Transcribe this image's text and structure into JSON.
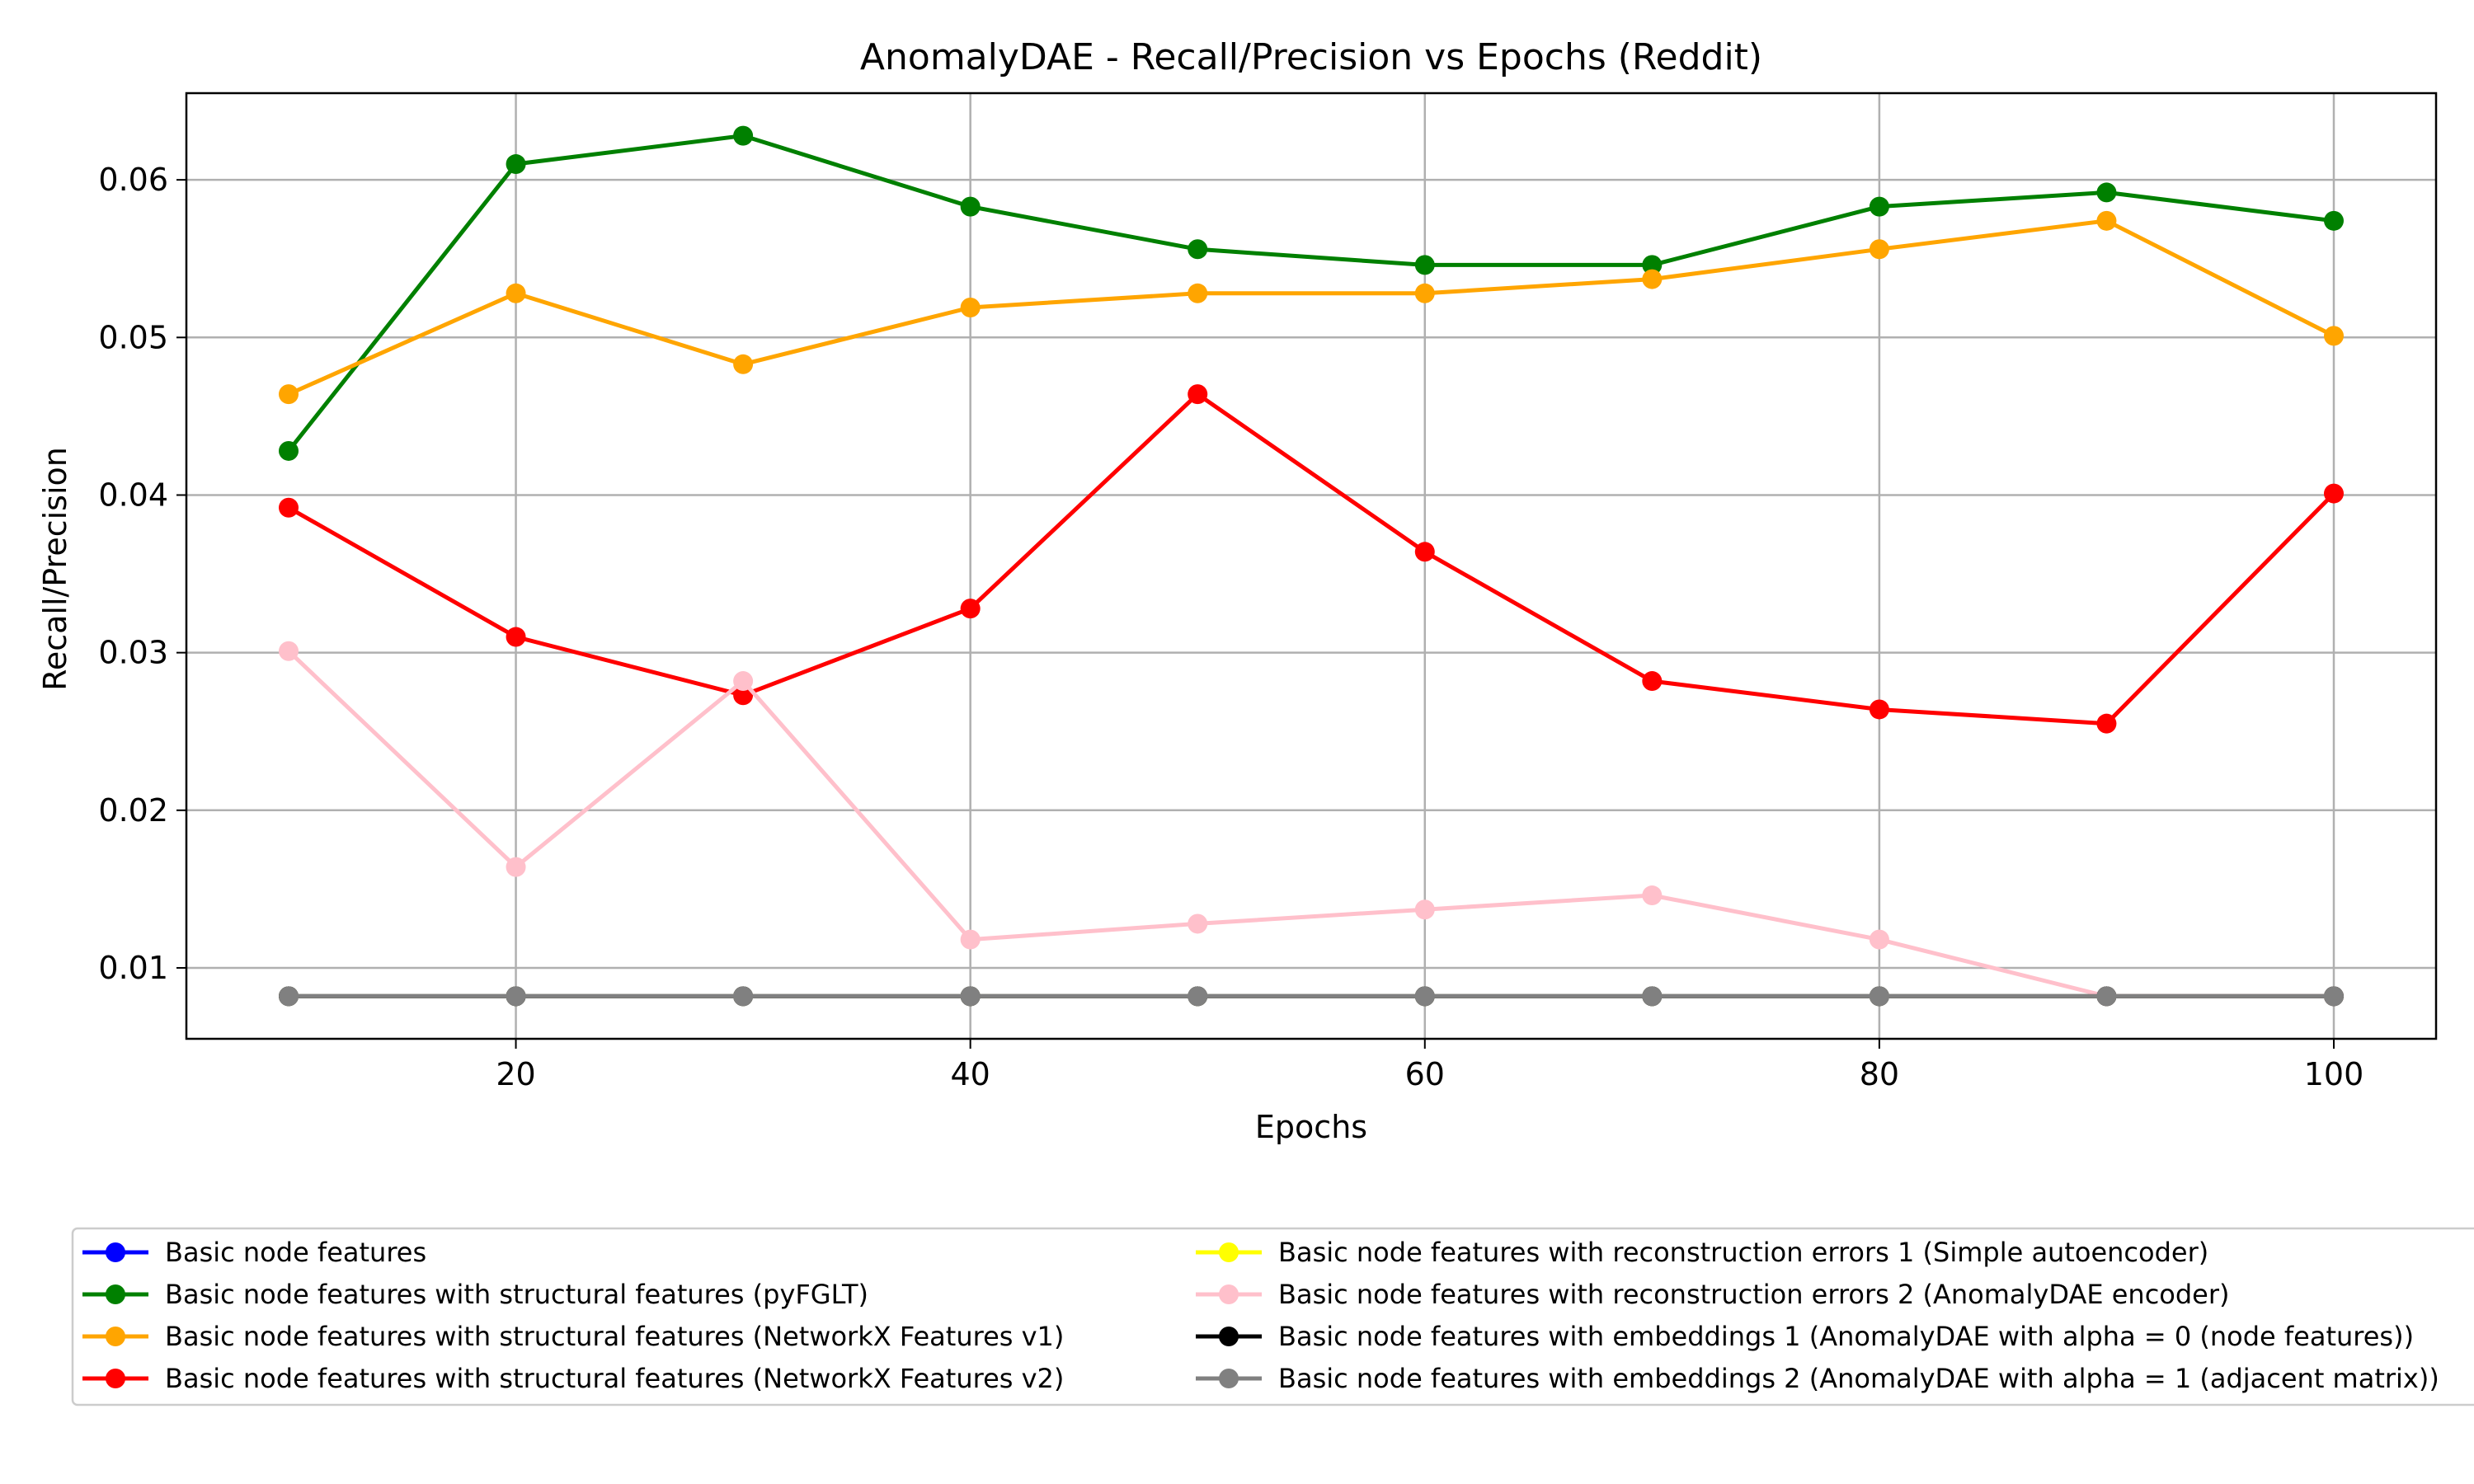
{
  "chart_data": {
    "type": "line",
    "title": "AnomalyDAE - Recall/Precision vs Epochs (Reddit)",
    "xlabel": "Epochs",
    "ylabel": "Recall/Precision",
    "xlim": [
      5.5,
      104.5
    ],
    "ylim": [
      0.0055,
      0.0655
    ],
    "xticks": [
      20,
      40,
      60,
      80,
      100
    ],
    "xtick_labels": [
      "20",
      "40",
      "60",
      "80",
      "100"
    ],
    "yticks": [
      0.01,
      0.02,
      0.03,
      0.04,
      0.05,
      0.06
    ],
    "ytick_labels": [
      "0.01",
      "0.02",
      "0.03",
      "0.04",
      "0.05",
      "0.06"
    ],
    "grid": true,
    "legend_position": "below plot, two columns",
    "x": [
      10,
      20,
      30,
      40,
      50,
      60,
      70,
      80,
      90,
      100
    ],
    "series": [
      {
        "name": "Basic node features",
        "color": "#0000ff",
        "values": [
          0.0082,
          0.0082,
          0.0082,
          0.0082,
          0.0082,
          0.0082,
          0.0082,
          0.0082,
          0.0082,
          0.0082
        ]
      },
      {
        "name": "Basic node features with structural features (pyFGLT)",
        "color": "#008000",
        "values": [
          0.0428,
          0.061,
          0.0628,
          0.0583,
          0.0556,
          0.0546,
          0.0546,
          0.0583,
          0.0592,
          0.0574
        ]
      },
      {
        "name": "Basic node features with structural features (NetworkX Features v1)",
        "color": "#ffa500",
        "values": [
          0.0464,
          0.0528,
          0.0483,
          0.0519,
          0.0528,
          0.0528,
          0.0537,
          0.0556,
          0.0574,
          0.0501
        ]
      },
      {
        "name": "Basic node features with structural features (NetworkX Features v2)",
        "color": "#ff0000",
        "values": [
          0.0392,
          0.031,
          0.0273,
          0.0328,
          0.0464,
          0.0364,
          0.0282,
          0.0264,
          0.0255,
          0.0401
        ]
      },
      {
        "name": "Basic node features with reconstruction errors 1 (Simple autoencoder)",
        "color": "#ffff00",
        "values": [
          0.0082,
          0.0082,
          0.0082,
          0.0082,
          0.0082,
          0.0082,
          0.0082,
          0.0082,
          0.0082,
          0.0082
        ]
      },
      {
        "name": "Basic node features with reconstruction errors 2 (AnomalyDAE encoder)",
        "color": "#ffc0cb",
        "values": [
          0.0301,
          0.0164,
          0.0282,
          0.0118,
          0.0128,
          0.0137,
          0.0146,
          0.0118,
          0.0082,
          0.0082
        ]
      },
      {
        "name": "Basic node features with embeddings 1 (AnomalyDAE with alpha = 0 (node features))",
        "color": "#000000",
        "values": [
          0.0082,
          0.0082,
          0.0082,
          0.0082,
          0.0082,
          0.0082,
          0.0082,
          0.0082,
          0.0082,
          0.0082
        ]
      },
      {
        "name": "Basic node features with embeddings 2 (AnomalyDAE with alpha = 1 (adjacent matrix))",
        "color": "#808080",
        "values": [
          0.0082,
          0.0082,
          0.0082,
          0.0082,
          0.0082,
          0.0082,
          0.0082,
          0.0082,
          0.0082,
          0.0082
        ]
      }
    ]
  }
}
